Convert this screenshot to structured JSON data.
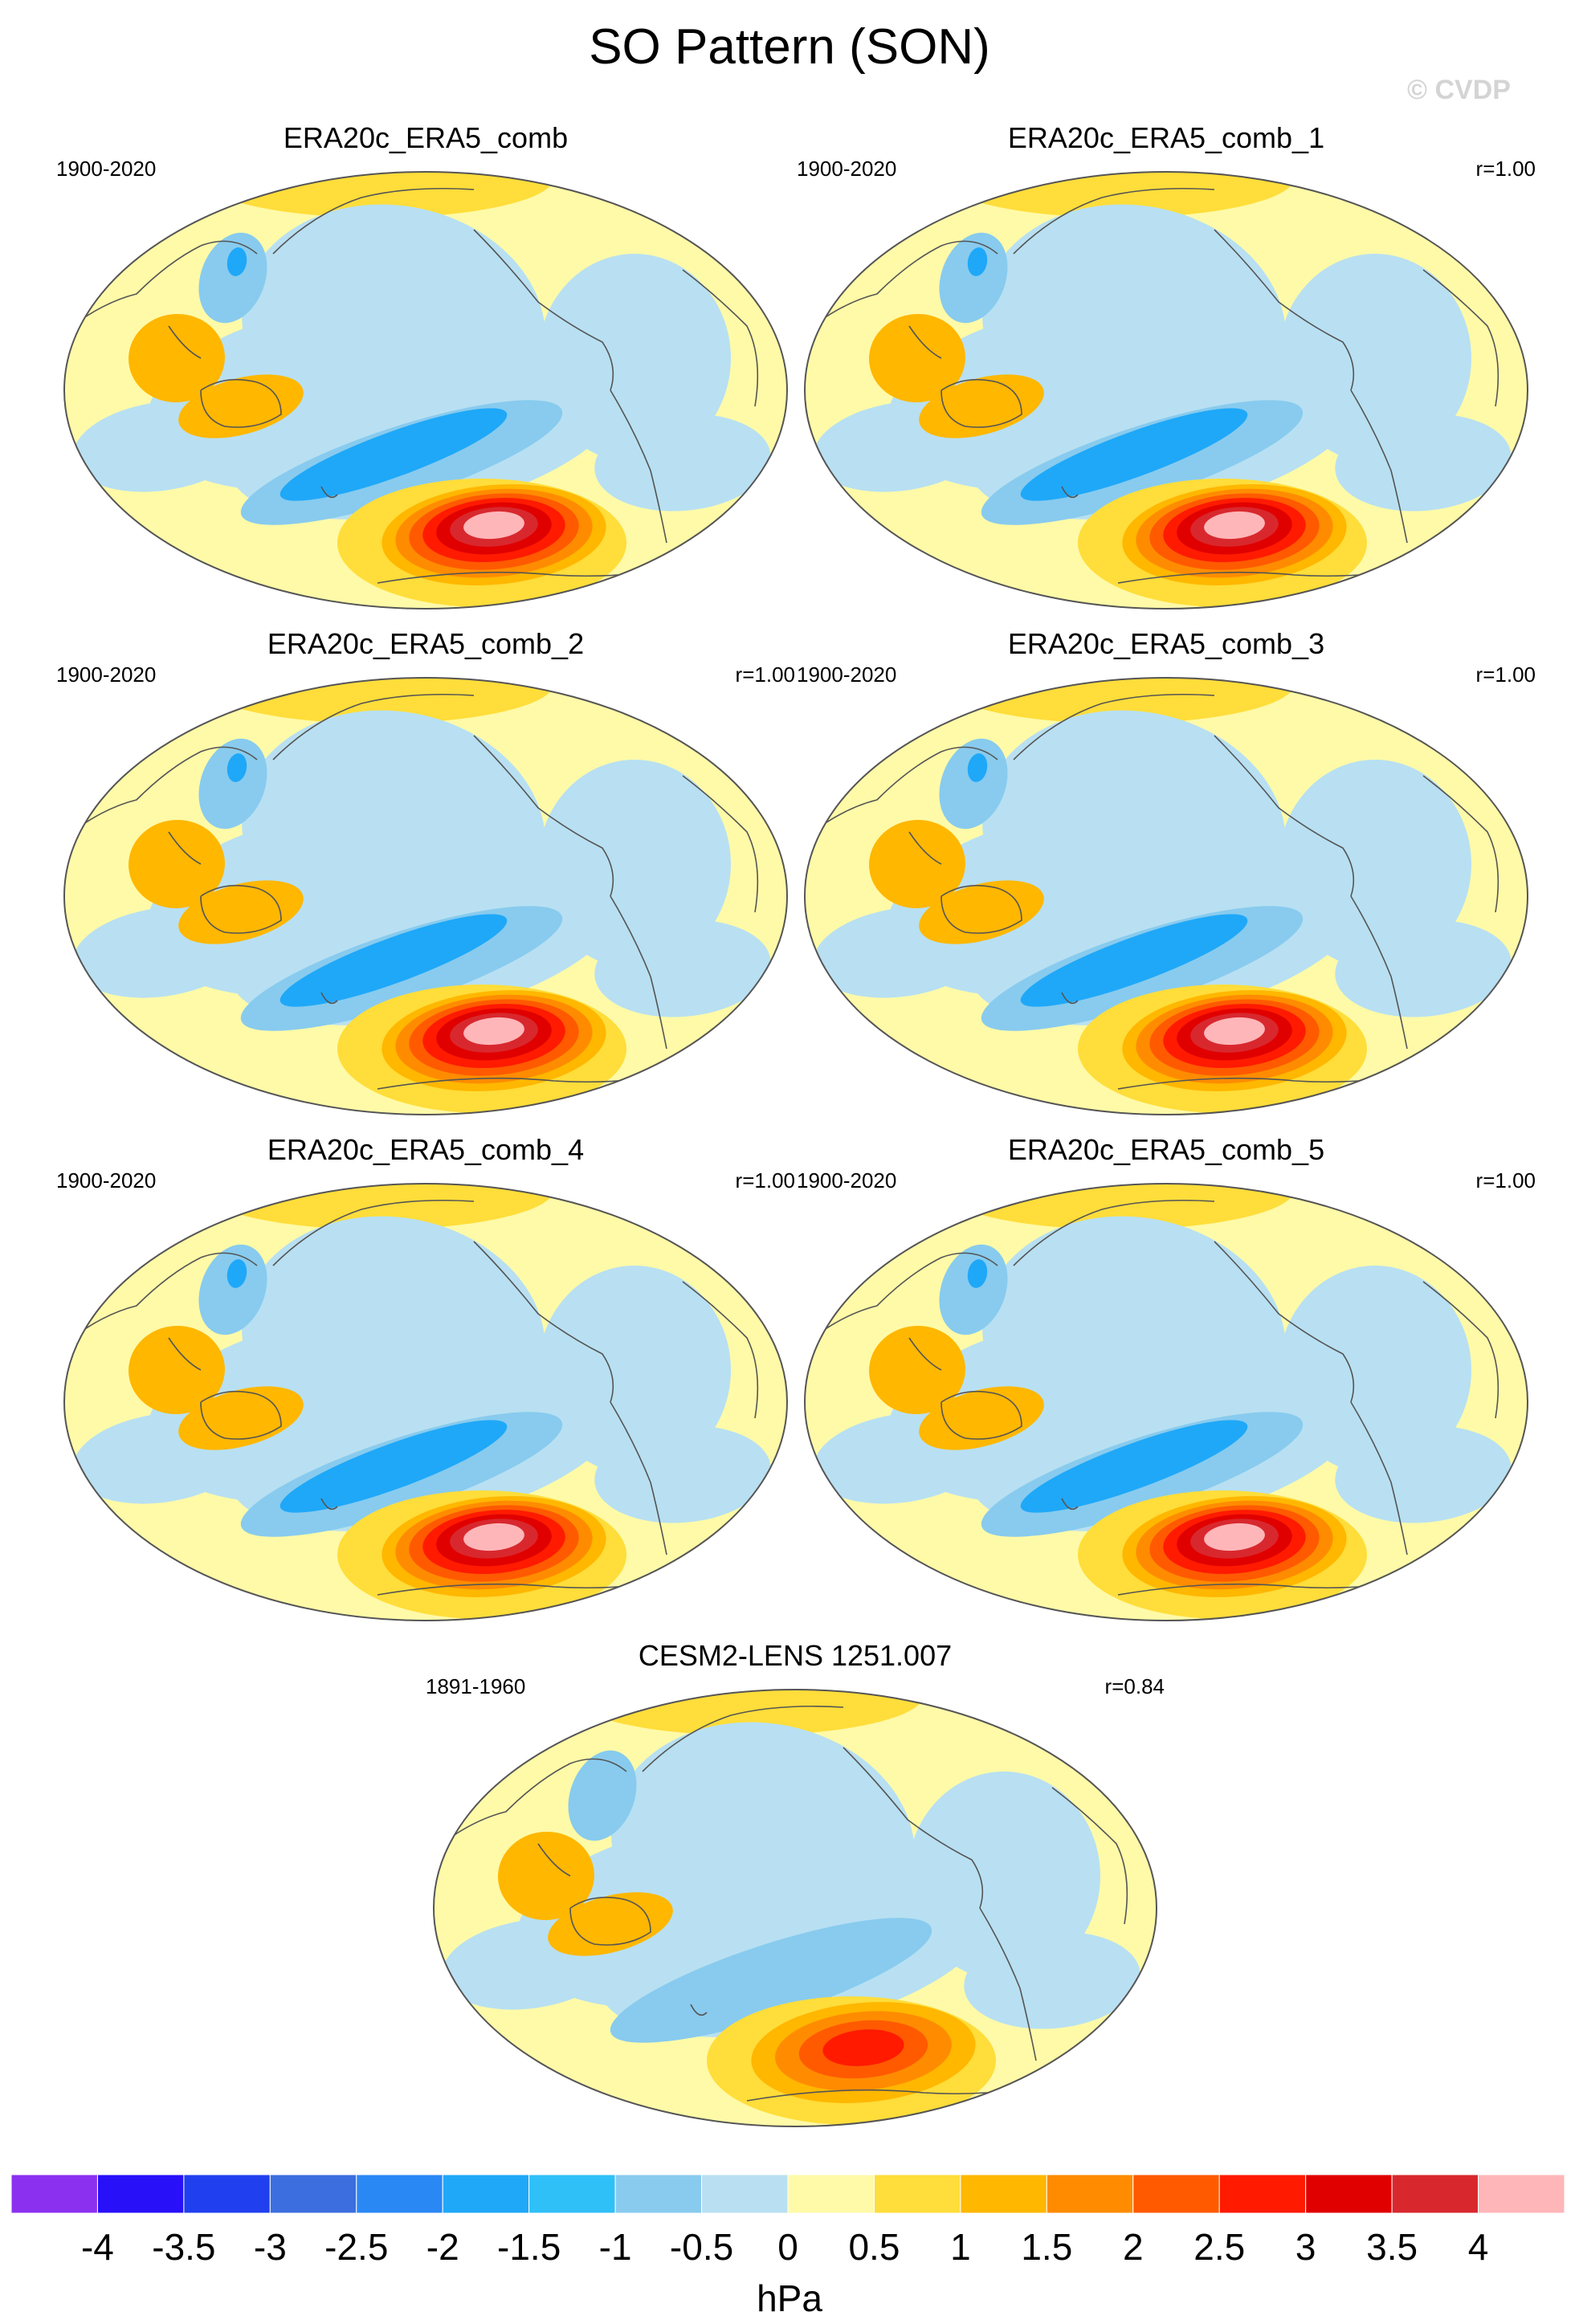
{
  "figure": {
    "title": "SO Pattern (SON)",
    "watermark": "© CVDP",
    "unit": "hPa"
  },
  "chart_data": {
    "type": "heatmap",
    "projection": "Robinson (Pacific-centered)",
    "variable": "sea level pressure regression",
    "panels": [
      {
        "title": "ERA20c_ERA5_comb",
        "period": "1900-2020",
        "r": "",
        "south_pacific_peak_hpa": 4.0,
        "south_pacific_trough_hpa": -1.8,
        "north_pacific_trough_hpa": -1.8,
        "australia_high_hpa": 1.0
      },
      {
        "title": "ERA20c_ERA5_comb_1",
        "period": "1900-2020",
        "r": "r=1.00",
        "south_pacific_peak_hpa": 4.0,
        "south_pacific_trough_hpa": -1.8,
        "north_pacific_trough_hpa": -1.8,
        "australia_high_hpa": 1.0
      },
      {
        "title": "ERA20c_ERA5_comb_2",
        "period": "1900-2020",
        "r": "r=1.00",
        "south_pacific_peak_hpa": 4.0,
        "south_pacific_trough_hpa": -1.8,
        "north_pacific_trough_hpa": -1.8,
        "australia_high_hpa": 1.0
      },
      {
        "title": "ERA20c_ERA5_comb_3",
        "period": "1900-2020",
        "r": "r=1.00",
        "south_pacific_peak_hpa": 4.0,
        "south_pacific_trough_hpa": -1.8,
        "north_pacific_trough_hpa": -1.8,
        "australia_high_hpa": 1.0
      },
      {
        "title": "ERA20c_ERA5_comb_4",
        "period": "1900-2020",
        "r": "r=1.00",
        "south_pacific_peak_hpa": 4.0,
        "south_pacific_trough_hpa": -1.8,
        "north_pacific_trough_hpa": -1.8,
        "australia_high_hpa": 1.0
      },
      {
        "title": "ERA20c_ERA5_comb_5",
        "period": "1900-2020",
        "r": "r=1.00",
        "south_pacific_peak_hpa": 4.0,
        "south_pacific_trough_hpa": -1.8,
        "north_pacific_trough_hpa": -1.8,
        "australia_high_hpa": 1.0
      },
      {
        "title": "CESM2-LENS 1251.007",
        "period": "1891-1960",
        "r": "r=0.84",
        "south_pacific_peak_hpa": 2.5,
        "south_pacific_trough_hpa": -1.0,
        "north_pacific_trough_hpa": -0.8,
        "australia_high_hpa": 1.0
      }
    ],
    "colorbar": {
      "levels": [
        -4,
        -3.5,
        -3,
        -2.5,
        -2,
        -1.5,
        -1,
        -0.5,
        0,
        0.5,
        1,
        1.5,
        2,
        2.5,
        3,
        3.5,
        4
      ],
      "tick_labels": [
        "-4",
        "-3.5",
        "-3",
        "-2.5",
        "-2",
        "-1.5",
        "-1",
        "-0.5",
        "0",
        "0.5",
        "1",
        "1.5",
        "2",
        "2.5",
        "3",
        "3.5",
        "4"
      ],
      "colors": [
        "#8c30f0",
        "#2810f8",
        "#2040f0",
        "#3c6ee0",
        "#2a88f5",
        "#1fa8f8",
        "#30c0f8",
        "#88cbee",
        "#b8e0f2",
        "#fffaa8",
        "#ffdd3a",
        "#ffb700",
        "#ff8c00",
        "#ff5a00",
        "#ff1a00",
        "#e00000",
        "#d8282e",
        "#ffb6b9"
      ]
    }
  }
}
